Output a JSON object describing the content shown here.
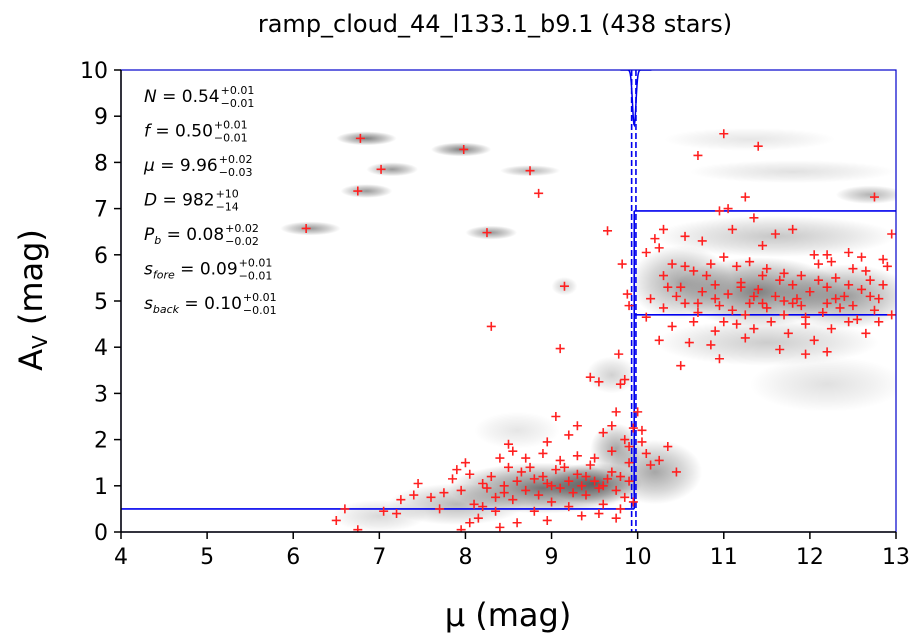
{
  "chart_data": {
    "type": "scatter",
    "title": "ramp_cloud_44_l133.1_b9.1 (438 stars)",
    "xlabel": "μ (mag)",
    "ylabel_main": "A",
    "ylabel_sub": "V",
    "ylabel_unit": " (mag)",
    "xlim": [
      4,
      13
    ],
    "ylim": [
      0,
      10
    ],
    "xticks": [
      4,
      5,
      6,
      7,
      8,
      9,
      10,
      11,
      12,
      13
    ],
    "yticks": [
      0,
      1,
      2,
      3,
      4,
      5,
      6,
      7,
      8,
      9,
      10
    ],
    "grid": false,
    "background": "grayscale density map of the posterior model",
    "colors": {
      "points": "#ff2020",
      "model_lines": "#0000ee",
      "frame": "#0000cc"
    },
    "model": {
      "distance_modulus": 9.96,
      "distance_modulus_lo": 9.93,
      "distance_modulus_hi": 9.98,
      "foreground_av": 0.5,
      "background_av_low": 4.7,
      "background_av_high": 6.95
    },
    "parameters": [
      {
        "name": "N",
        "sub": "",
        "value": "0.54",
        "plus": "+0.01",
        "minus": "−0.01"
      },
      {
        "name": "f",
        "sub": "",
        "value": "0.50",
        "plus": "+0.01",
        "minus": "−0.01"
      },
      {
        "name": "μ",
        "sub": "",
        "value": "9.96",
        "plus": "+0.02",
        "minus": "−0.03"
      },
      {
        "name": "D",
        "sub": "",
        "value": "982",
        "plus": "+10",
        "minus": "−14"
      },
      {
        "name": "P",
        "sub": "b",
        "value": "0.08",
        "plus": "+0.02",
        "minus": "−0.02"
      },
      {
        "name": "s",
        "sub": "fore",
        "value": "0.09",
        "plus": "+0.01",
        "minus": "−0.01"
      },
      {
        "name": "s",
        "sub": "back",
        "value": "0.10",
        "plus": "+0.01",
        "minus": "−0.01"
      }
    ],
    "points": [
      [
        6.78,
        8.52
      ],
      [
        7.02,
        7.85
      ],
      [
        6.75,
        7.38
      ],
      [
        6.15,
        6.57
      ],
      [
        7.98,
        8.28
      ],
      [
        8.75,
        7.82
      ],
      [
        8.85,
        7.33
      ],
      [
        8.25,
        6.48
      ],
      [
        8.3,
        4.45
      ],
      [
        9.15,
        5.32
      ],
      [
        9.1,
        3.97
      ],
      [
        9.65,
        6.52
      ],
      [
        9.45,
        3.35
      ],
      [
        9.55,
        3.25
      ],
      [
        9.8,
        3.2
      ],
      [
        9.2,
        2.1
      ],
      [
        9.3,
        2.3
      ],
      [
        9.05,
        2.5
      ],
      [
        8.95,
        1.95
      ],
      [
        9.6,
        2.15
      ],
      [
        9.7,
        2.3
      ],
      [
        9.75,
        2.6
      ],
      [
        9.85,
        2.0
      ],
      [
        9.9,
        1.5
      ],
      [
        9.82,
        5.8
      ],
      [
        9.88,
        5.15
      ],
      [
        9.9,
        4.9
      ],
      [
        9.78,
        3.85
      ],
      [
        9.85,
        3.3
      ],
      [
        9.95,
        2.25
      ],
      [
        8.5,
        1.9
      ],
      [
        8.55,
        1.75
      ],
      [
        8.4,
        1.6
      ],
      [
        8.0,
        1.5
      ],
      [
        7.9,
        1.35
      ],
      [
        7.45,
        1.05
      ],
      [
        7.25,
        0.7
      ],
      [
        7.05,
        0.45
      ],
      [
        6.6,
        0.5
      ],
      [
        6.5,
        0.25
      ],
      [
        6.75,
        0.05
      ],
      [
        7.2,
        0.4
      ],
      [
        7.4,
        0.8
      ],
      [
        7.6,
        0.75
      ],
      [
        7.75,
        0.85
      ],
      [
        7.95,
        0.9
      ],
      [
        8.1,
        0.6
      ],
      [
        8.05,
        0.2
      ],
      [
        8.2,
        0.55
      ],
      [
        8.35,
        0.75
      ],
      [
        8.45,
        1.0
      ],
      [
        8.6,
        1.1
      ],
      [
        8.7,
        0.9
      ],
      [
        8.8,
        1.15
      ],
      [
        8.9,
        1.2
      ],
      [
        9.0,
        1.0
      ],
      [
        9.1,
        0.95
      ],
      [
        9.2,
        1.1
      ],
      [
        9.3,
        1.25
      ],
      [
        9.4,
        1.2
      ],
      [
        9.5,
        1.1
      ],
      [
        9.6,
        1.0
      ],
      [
        9.7,
        1.3
      ],
      [
        9.8,
        1.2
      ],
      [
        9.9,
        1.1
      ],
      [
        8.3,
        1.2
      ],
      [
        8.45,
        0.85
      ],
      [
        8.55,
        0.7
      ],
      [
        8.65,
        1.3
      ],
      [
        8.75,
        1.4
      ],
      [
        8.85,
        0.8
      ],
      [
        8.95,
        1.05
      ],
      [
        9.05,
        1.35
      ],
      [
        9.15,
        1.4
      ],
      [
        9.25,
        0.85
      ],
      [
        9.35,
        1.0
      ],
      [
        9.45,
        1.45
      ],
      [
        9.55,
        0.95
      ],
      [
        9.65,
        1.15
      ],
      [
        9.75,
        0.9
      ],
      [
        9.85,
        0.75
      ],
      [
        9.95,
        0.65
      ],
      [
        8.2,
        1.05
      ],
      [
        8.15,
        0.3
      ],
      [
        8.4,
        0.1
      ],
      [
        8.6,
        0.2
      ],
      [
        8.8,
        0.45
      ],
      [
        9.0,
        0.65
      ],
      [
        9.2,
        0.55
      ],
      [
        9.4,
        0.8
      ],
      [
        9.6,
        0.6
      ],
      [
        9.8,
        0.5
      ],
      [
        7.85,
        1.15
      ],
      [
        7.7,
        0.5
      ],
      [
        8.05,
        1.25
      ],
      [
        8.25,
        0.95
      ],
      [
        8.5,
        1.4
      ],
      [
        8.7,
        1.6
      ],
      [
        8.9,
        1.7
      ],
      [
        9.1,
        1.55
      ],
      [
        9.3,
        1.65
      ],
      [
        9.5,
        1.6
      ],
      [
        9.7,
        1.75
      ],
      [
        9.9,
        1.85
      ],
      [
        9.35,
        0.35
      ],
      [
        9.55,
        0.4
      ],
      [
        9.75,
        0.3
      ],
      [
        8.35,
        0.45
      ],
      [
        8.95,
        0.25
      ],
      [
        7.95,
        0.05
      ],
      [
        10.05,
        1.95
      ],
      [
        10.1,
        1.7
      ],
      [
        10.25,
        1.55
      ],
      [
        10.45,
        1.3
      ],
      [
        10.0,
        2.6
      ],
      [
        10.05,
        2.2
      ],
      [
        10.15,
        1.45
      ],
      [
        10.35,
        1.85
      ],
      [
        10.1,
        6.05
      ],
      [
        10.2,
        6.35
      ],
      [
        10.25,
        6.15
      ],
      [
        10.3,
        6.55
      ],
      [
        10.55,
        6.4
      ],
      [
        10.75,
        6.3
      ],
      [
        10.95,
        6.95
      ],
      [
        11.1,
        6.55
      ],
      [
        11.25,
        7.25
      ],
      [
        11.35,
        6.8
      ],
      [
        11.45,
        6.2
      ],
      [
        11.6,
        6.45
      ],
      [
        11.8,
        6.55
      ],
      [
        12.05,
        6.0
      ],
      [
        12.25,
        5.85
      ],
      [
        12.45,
        6.05
      ],
      [
        12.6,
        5.95
      ],
      [
        12.85,
        5.9
      ],
      [
        12.95,
        6.45
      ],
      [
        12.2,
        6.0
      ],
      [
        10.7,
        8.15
      ],
      [
        11.0,
        8.62
      ],
      [
        11.4,
        8.35
      ],
      [
        12.75,
        7.25
      ],
      [
        11.05,
        7.0
      ],
      [
        10.4,
        5.8
      ],
      [
        10.65,
        5.65
      ],
      [
        10.85,
        5.8
      ],
      [
        11.15,
        5.75
      ],
      [
        11.3,
        5.85
      ],
      [
        11.5,
        5.7
      ],
      [
        11.7,
        5.6
      ],
      [
        11.9,
        5.55
      ],
      [
        12.1,
        5.8
      ],
      [
        12.3,
        5.5
      ],
      [
        12.5,
        5.7
      ],
      [
        12.7,
        5.45
      ],
      [
        12.9,
        5.75
      ],
      [
        10.5,
        5.3
      ],
      [
        10.75,
        5.2
      ],
      [
        10.9,
        5.35
      ],
      [
        11.05,
        5.15
      ],
      [
        11.2,
        5.4
      ],
      [
        11.4,
        5.25
      ],
      [
        11.6,
        5.1
      ],
      [
        11.8,
        5.35
      ],
      [
        12.0,
        5.2
      ],
      [
        12.2,
        5.3
      ],
      [
        12.4,
        5.1
      ],
      [
        12.6,
        5.25
      ],
      [
        12.8,
        5.05
      ],
      [
        10.3,
        4.85
      ],
      [
        10.55,
        4.95
      ],
      [
        10.7,
        4.75
      ],
      [
        10.95,
        4.9
      ],
      [
        11.1,
        4.8
      ],
      [
        11.3,
        4.95
      ],
      [
        11.5,
        4.85
      ],
      [
        11.7,
        4.7
      ],
      [
        11.9,
        4.9
      ],
      [
        12.15,
        4.75
      ],
      [
        12.35,
        4.85
      ],
      [
        12.55,
        4.6
      ],
      [
        12.75,
        4.8
      ],
      [
        12.95,
        4.7
      ],
      [
        10.4,
        4.45
      ],
      [
        10.65,
        4.55
      ],
      [
        10.9,
        4.35
      ],
      [
        11.15,
        4.5
      ],
      [
        11.35,
        4.4
      ],
      [
        11.55,
        4.55
      ],
      [
        11.75,
        4.3
      ],
      [
        11.95,
        4.5
      ],
      [
        12.25,
        4.4
      ],
      [
        12.45,
        4.55
      ],
      [
        12.65,
        4.3
      ],
      [
        10.25,
        4.15
      ],
      [
        10.6,
        4.1
      ],
      [
        10.85,
        4.05
      ],
      [
        11.25,
        4.2
      ],
      [
        11.65,
        3.95
      ],
      [
        12.05,
        4.15
      ],
      [
        12.2,
        3.9
      ],
      [
        10.95,
        3.75
      ],
      [
        10.5,
        3.6
      ],
      [
        11.95,
        3.85
      ],
      [
        10.3,
        5.55
      ],
      [
        10.55,
        5.75
      ],
      [
        10.8,
        5.55
      ],
      [
        11.0,
        5.95
      ],
      [
        11.2,
        5.3
      ],
      [
        11.45,
        5.55
      ],
      [
        11.65,
        5.45
      ],
      [
        11.85,
        5.05
      ],
      [
        12.1,
        5.45
      ],
      [
        12.45,
        5.35
      ],
      [
        12.65,
        5.65
      ],
      [
        12.85,
        5.35
      ],
      [
        10.15,
        5.05
      ],
      [
        10.45,
        5.1
      ],
      [
        10.7,
        4.95
      ],
      [
        11.0,
        4.55
      ],
      [
        11.25,
        4.7
      ],
      [
        11.45,
        4.95
      ],
      [
        11.7,
        5.0
      ],
      [
        11.95,
        4.65
      ],
      [
        12.2,
        4.95
      ],
      [
        12.5,
        4.9
      ],
      [
        12.8,
        4.55
      ],
      [
        10.1,
        4.65
      ],
      [
        10.35,
        5.3
      ],
      [
        10.9,
        5.05
      ],
      [
        11.35,
        5.1
      ],
      [
        11.8,
        4.95
      ],
      [
        12.3,
        5.05
      ],
      [
        12.7,
        5.1
      ]
    ],
    "density_blobs": [
      {
        "cx": 8.9,
        "cy": 0.95,
        "rx": 1.1,
        "ry": 0.55,
        "o": 0.55
      },
      {
        "cx": 9.5,
        "cy": 1.05,
        "rx": 0.55,
        "ry": 0.45,
        "o": 0.5
      },
      {
        "cx": 7.9,
        "cy": 0.6,
        "rx": 0.8,
        "ry": 0.45,
        "o": 0.28
      },
      {
        "cx": 7.0,
        "cy": 0.35,
        "rx": 0.55,
        "ry": 0.35,
        "o": 0.15
      },
      {
        "cx": 9.75,
        "cy": 1.8,
        "rx": 0.3,
        "ry": 0.55,
        "o": 0.35
      },
      {
        "cx": 10.2,
        "cy": 1.3,
        "rx": 0.55,
        "ry": 0.7,
        "o": 0.35
      },
      {
        "cx": 11.4,
        "cy": 5.2,
        "rx": 1.0,
        "ry": 0.75,
        "o": 0.5
      },
      {
        "cx": 12.4,
        "cy": 5.1,
        "rx": 0.8,
        "ry": 0.7,
        "o": 0.4
      },
      {
        "cx": 10.5,
        "cy": 5.4,
        "rx": 0.6,
        "ry": 0.8,
        "o": 0.35
      },
      {
        "cx": 11.6,
        "cy": 6.4,
        "rx": 1.4,
        "ry": 0.45,
        "o": 0.22
      },
      {
        "cx": 11.5,
        "cy": 4.1,
        "rx": 1.3,
        "ry": 0.5,
        "o": 0.2
      },
      {
        "cx": 12.2,
        "cy": 3.2,
        "rx": 0.9,
        "ry": 0.6,
        "o": 0.12
      },
      {
        "cx": 11.3,
        "cy": 8.5,
        "rx": 1.0,
        "ry": 0.25,
        "o": 0.1
      },
      {
        "cx": 11.8,
        "cy": 7.8,
        "rx": 1.2,
        "ry": 0.25,
        "o": 0.12
      },
      {
        "cx": 12.7,
        "cy": 7.3,
        "rx": 0.4,
        "ry": 0.2,
        "o": 0.3
      },
      {
        "cx": 6.85,
        "cy": 8.52,
        "rx": 0.35,
        "ry": 0.15,
        "o": 0.5
      },
      {
        "cx": 7.15,
        "cy": 7.85,
        "rx": 0.3,
        "ry": 0.15,
        "o": 0.4
      },
      {
        "cx": 6.85,
        "cy": 7.38,
        "rx": 0.3,
        "ry": 0.15,
        "o": 0.4
      },
      {
        "cx": 6.2,
        "cy": 6.57,
        "rx": 0.35,
        "ry": 0.15,
        "o": 0.4
      },
      {
        "cx": 7.95,
        "cy": 8.28,
        "rx": 0.35,
        "ry": 0.15,
        "o": 0.5
      },
      {
        "cx": 8.75,
        "cy": 7.82,
        "rx": 0.35,
        "ry": 0.12,
        "o": 0.3
      },
      {
        "cx": 8.3,
        "cy": 6.48,
        "rx": 0.3,
        "ry": 0.15,
        "o": 0.4
      },
      {
        "cx": 9.15,
        "cy": 5.32,
        "rx": 0.15,
        "ry": 0.2,
        "o": 0.2
      },
      {
        "cx": 9.7,
        "cy": 3.4,
        "rx": 0.3,
        "ry": 0.4,
        "o": 0.18
      },
      {
        "cx": 8.6,
        "cy": 2.2,
        "rx": 0.5,
        "ry": 0.4,
        "o": 0.1
      }
    ]
  }
}
